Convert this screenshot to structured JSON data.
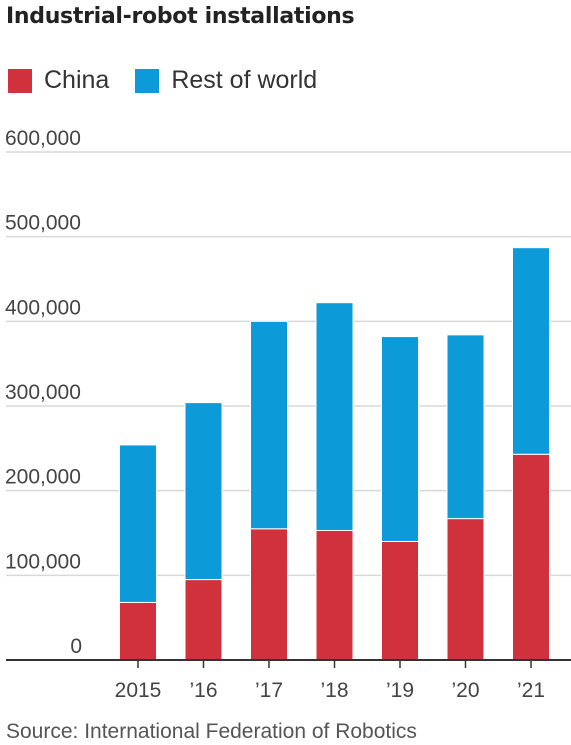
{
  "title": "Industrial-robot installations",
  "legend": {
    "china_label": "China",
    "rest_label": "Rest of world"
  },
  "colors": {
    "china": "#d1313d",
    "rest_of_world": "#0d9ad9"
  },
  "source": "Source: International Federation of Robotics",
  "chart_data": {
    "type": "bar",
    "stacked": true,
    "categories": [
      "2015",
      "’16",
      "’17",
      "’18",
      "’19",
      "’20",
      "’21"
    ],
    "series": [
      {
        "name": "China",
        "values": [
          68000,
          95000,
          155000,
          153000,
          140000,
          167000,
          243000
        ]
      },
      {
        "name": "Rest of world",
        "values": [
          186000,
          209000,
          245000,
          269000,
          242000,
          217000,
          244000
        ]
      }
    ],
    "ylim": [
      0,
      600000
    ],
    "yticks": [
      0,
      100000,
      200000,
      300000,
      400000,
      500000,
      600000
    ],
    "ytick_labels": [
      "0",
      "100,000",
      "200,000",
      "300,000",
      "400,000",
      "500,000",
      "600,000"
    ],
    "grid": true,
    "legend_position": "top-left"
  }
}
